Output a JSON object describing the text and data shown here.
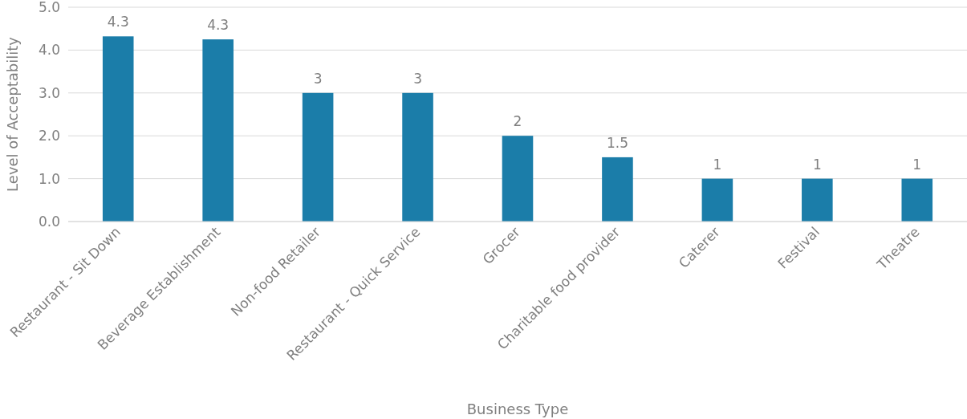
{
  "chart_data": {
    "type": "bar",
    "xlabel": "Business Type",
    "ylabel": "Level of Acceptability",
    "categories": [
      "Restaurant - Sit Down",
      "Beverage Establishment",
      "Non-food Retailer",
      "Restaurant - Quick Service",
      "Grocer",
      "Charitable food provider",
      "Caterer",
      "Festival",
      "Theatre"
    ],
    "values": [
      4.32,
      4.25,
      3,
      3,
      2,
      1.5,
      1,
      1,
      1
    ],
    "value_labels": [
      "4.3",
      "4.3",
      "3",
      "3",
      "2",
      "1.5",
      "1",
      "1",
      "1"
    ],
    "color": "#1b7da9",
    "ylim": [
      0,
      5
    ],
    "yticks": [
      {
        "value": 0,
        "label": "0.0"
      },
      {
        "value": 1,
        "label": "1.0"
      },
      {
        "value": 2,
        "label": "2.0"
      },
      {
        "value": 3,
        "label": "3.0"
      },
      {
        "value": 4,
        "label": "4.0"
      },
      {
        "value": 5,
        "label": "5.0"
      }
    ],
    "grid": "y"
  }
}
